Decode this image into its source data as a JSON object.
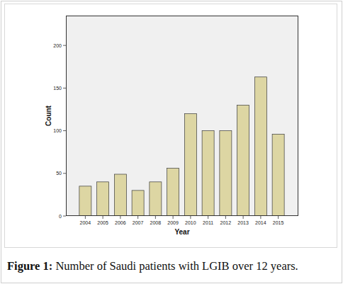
{
  "chart_data": {
    "type": "bar",
    "title": "Figure 1: Number of Saudi patients with LGIB over 12 years.",
    "x_label": "Year",
    "y_label": "Count",
    "categories": [
      "2004",
      "2005",
      "2006",
      "2007",
      "2008",
      "2009",
      "2010",
      "2011",
      "2012",
      "2013",
      "2014",
      "2015"
    ],
    "values": [
      35,
      40,
      49,
      30,
      40,
      56,
      120,
      100,
      100,
      130,
      163,
      96
    ],
    "color": "#ddd6a3",
    "ylim": [
      0,
      235
    ],
    "yticks": [
      0,
      50,
      100,
      150,
      200
    ],
    "grid": false
  }
}
